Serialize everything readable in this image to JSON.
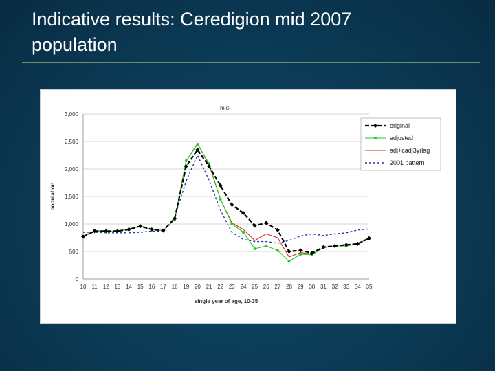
{
  "slide": {
    "title_line1": "Indicative results: Ceredigion mid 2007",
    "title_line2": "population"
  },
  "chart_data": {
    "type": "line",
    "xlabel": "single year of age, 10-35",
    "ylabel": "population",
    "ylim": [
      0,
      3000
    ],
    "yticks": [
      0,
      500,
      1000,
      1500,
      2000,
      2500,
      3000
    ],
    "ytick_labels": [
      "0",
      "500",
      "1,000",
      "1,500",
      "2,000",
      "2,500",
      "3,000"
    ],
    "x": [
      10,
      11,
      12,
      13,
      14,
      15,
      16,
      17,
      18,
      19,
      20,
      21,
      22,
      23,
      24,
      25,
      26,
      27,
      28,
      29,
      30,
      31,
      32,
      33,
      34,
      35
    ],
    "grid": "horizontal",
    "legend_position": "top-right",
    "annotation": "mid-",
    "series": [
      {
        "name": "original",
        "color": "#000000",
        "style": "dashed-diamond",
        "values": [
          770,
          870,
          870,
          870,
          900,
          960,
          900,
          880,
          1100,
          2050,
          2350,
          2050,
          1700,
          1350,
          1200,
          970,
          1020,
          890,
          500,
          520,
          470,
          580,
          600,
          620,
          640,
          740
        ]
      },
      {
        "name": "adjusted",
        "color": "#22cc22",
        "style": "solid-dot",
        "values": [
          760,
          880,
          860,
          870,
          910,
          960,
          900,
          880,
          1080,
          2150,
          2450,
          2100,
          1450,
          1000,
          850,
          550,
          600,
          520,
          320,
          450,
          440,
          570,
          600,
          600,
          640,
          730
        ]
      },
      {
        "name": "adj+cadj3yrlag",
        "color": "#dd2222",
        "style": "solid",
        "values": [
          760,
          880,
          860,
          870,
          910,
          960,
          900,
          880,
          1080,
          2150,
          2460,
          2080,
          1450,
          1020,
          900,
          700,
          820,
          750,
          400,
          480,
          450,
          570,
          600,
          600,
          640,
          740
        ]
      },
      {
        "name": "2001 pattern",
        "color": "#2233aa",
        "style": "dotted",
        "values": [
          850,
          850,
          840,
          840,
          840,
          850,
          870,
          870,
          1120,
          1780,
          2250,
          1800,
          1250,
          850,
          720,
          680,
          680,
          650,
          700,
          780,
          820,
          790,
          820,
          840,
          890,
          910
        ]
      }
    ]
  }
}
